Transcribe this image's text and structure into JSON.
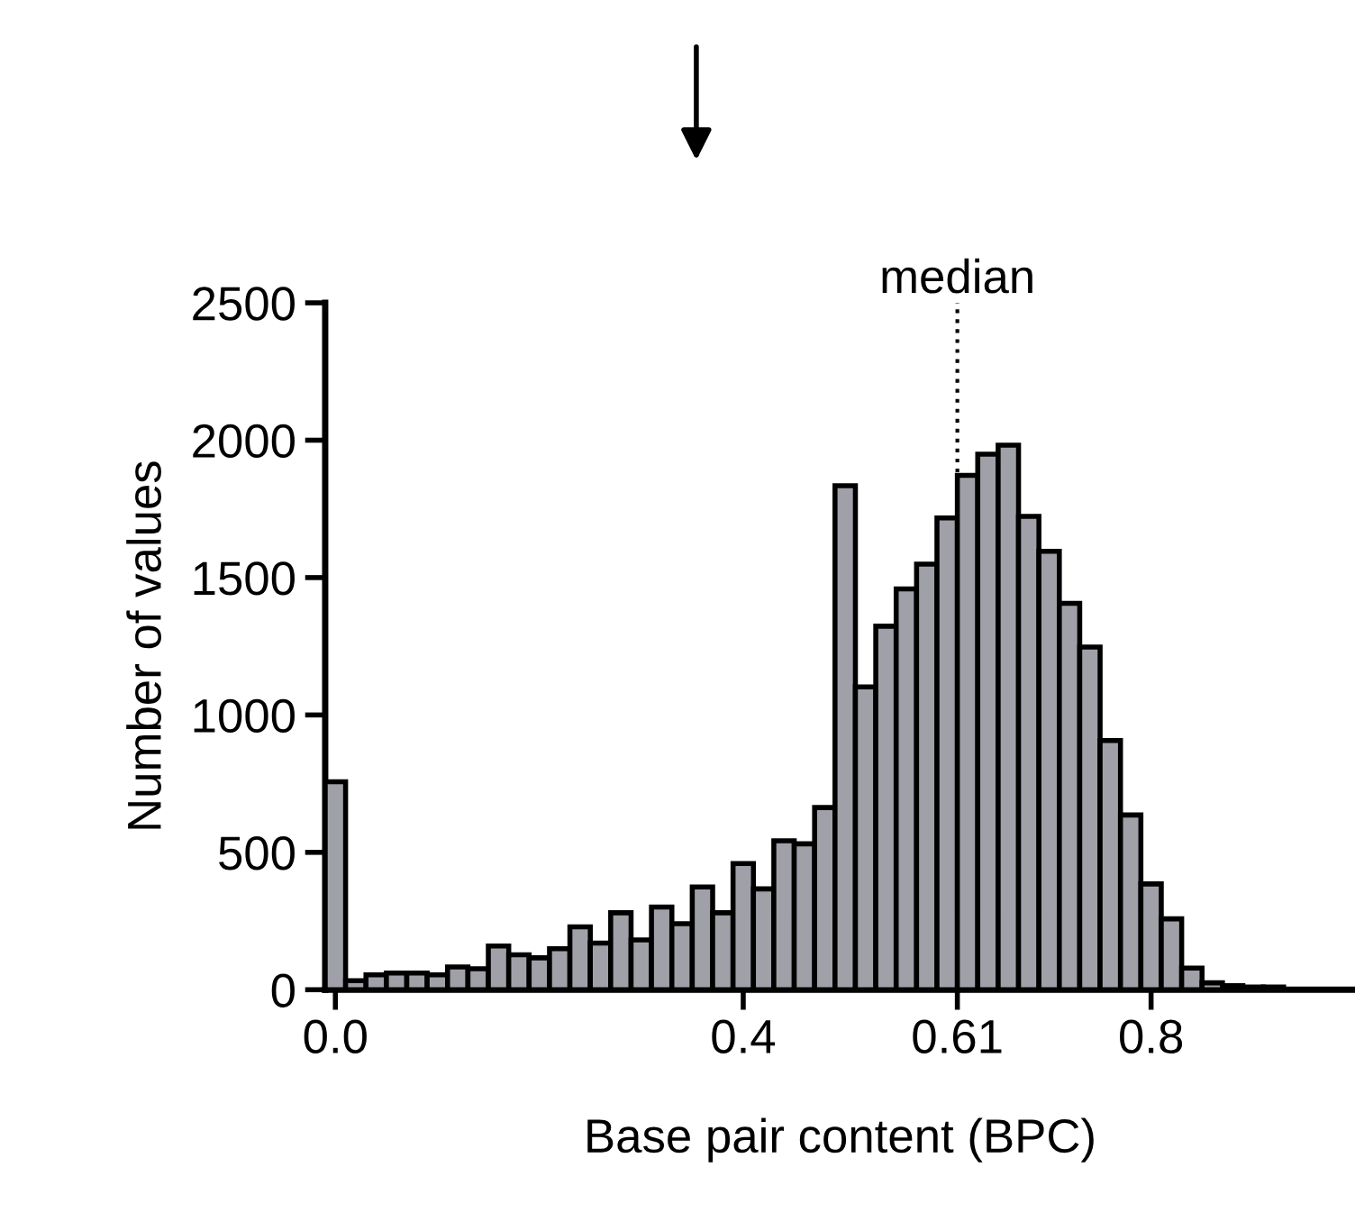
{
  "chart_data": {
    "type": "histogram",
    "xlabel": "Base pair content (BPC)",
    "ylabel": "Number of values",
    "bins": [
      -0.01,
      0.01,
      0.03,
      0.05,
      0.07,
      0.09,
      0.11,
      0.13,
      0.15,
      0.17,
      0.19,
      0.21,
      0.23,
      0.25,
      0.27,
      0.29,
      0.31,
      0.33,
      0.35,
      0.37,
      0.39,
      0.41,
      0.43,
      0.45,
      0.47,
      0.49,
      0.51,
      0.53,
      0.55,
      0.57,
      0.59,
      0.61,
      0.63,
      0.65,
      0.67,
      0.69,
      0.71,
      0.73,
      0.75,
      0.77,
      0.79,
      0.81,
      0.83,
      0.85,
      0.87,
      0.89,
      0.91,
      0.93
    ],
    "values": [
      757,
      33,
      54,
      61,
      61,
      54,
      83,
      76,
      159,
      127,
      116,
      149,
      229,
      170,
      280,
      181,
      301,
      240,
      374,
      280,
      459,
      367,
      542,
      531,
      663,
      1834,
      1102,
      1323,
      1459,
      1549,
      1717,
      1872,
      1949,
      1982,
      1723,
      1596,
      1406,
      1247,
      907,
      636,
      385,
      258,
      79,
      25,
      15,
      10,
      10
    ],
    "color": "#a0a0a8",
    "xlim": [
      -0.01,
      1.0
    ],
    "ylim": [
      0,
      2500
    ],
    "xticks": [
      {
        "value": 0.0,
        "label": "0.0"
      },
      0.4,
      0.61,
      0.8
    ],
    "yticks": [
      0,
      500,
      1000,
      1500,
      2000,
      2500
    ],
    "ref_lines": [
      {
        "axis": "x",
        "value": 0.61,
        "label": "median",
        "line_style": "dotted"
      }
    ],
    "grid": false,
    "legend": false
  }
}
